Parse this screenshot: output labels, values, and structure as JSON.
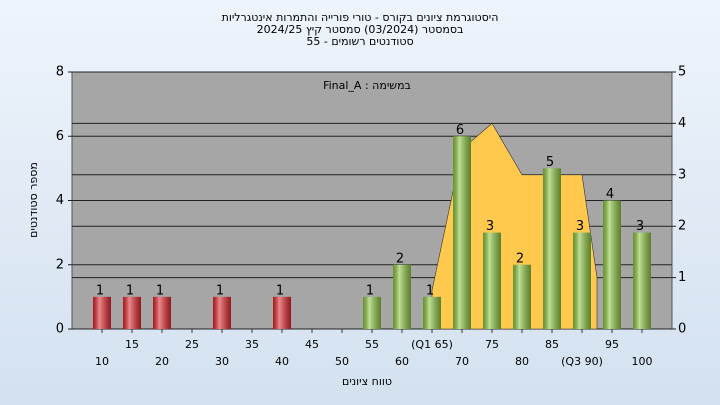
{
  "chart_data": {
    "type": "bar",
    "title": [
      "היסטוגרמת ציונים בקורס - טורי פורייה והתמרות אינטגרליות",
      "בסמסטר  (03/2024)  סמסטר קיץ  2024/25",
      "סטודנטים רשומים - 55"
    ],
    "annotation": "Final_A : במשימה",
    "x_label": "טווח ציונים",
    "y_label": "מספר סטודנטים",
    "x": [
      10,
      15,
      20,
      30,
      40,
      55,
      60,
      65,
      70,
      75,
      80,
      85,
      90,
      95,
      100
    ],
    "values": [
      1,
      1,
      1,
      1,
      1,
      1,
      2,
      1,
      6,
      3,
      2,
      5,
      3,
      4,
      3
    ],
    "colors": [
      "#e0262c",
      "#e0262c",
      "#e0262c",
      "#e0262c",
      "#e0262c",
      "#8cc63f",
      "#8cc63f",
      "#8cc63f",
      "#8cc63f",
      "#8cc63f",
      "#8cc63f",
      "#8cc63f",
      "#8cc63f",
      "#8cc63f",
      "#8cc63f"
    ],
    "area": {
      "axis": "y2",
      "color": "#ffc94d",
      "x": [
        65,
        70,
        75,
        80,
        90,
        92.5
      ],
      "values": [
        0.75,
        3.5,
        4,
        3,
        3,
        1
      ]
    },
    "xlim": [
      5,
      105
    ],
    "xticks": [
      10,
      15,
      20,
      25,
      30,
      35,
      40,
      45,
      50,
      55,
      60,
      {
        "value": 65,
        "label": "(Q1 65)"
      },
      70,
      75,
      80,
      85,
      {
        "value": 90,
        "label": "(Q3 90)"
      },
      95,
      100
    ],
    "ylim": [
      0,
      8
    ],
    "yticks": [
      0,
      2,
      4,
      6,
      8
    ],
    "y2lim": [
      0,
      5
    ],
    "y2ticks": [
      0,
      1,
      2,
      3,
      4,
      5
    ],
    "grid": true
  }
}
